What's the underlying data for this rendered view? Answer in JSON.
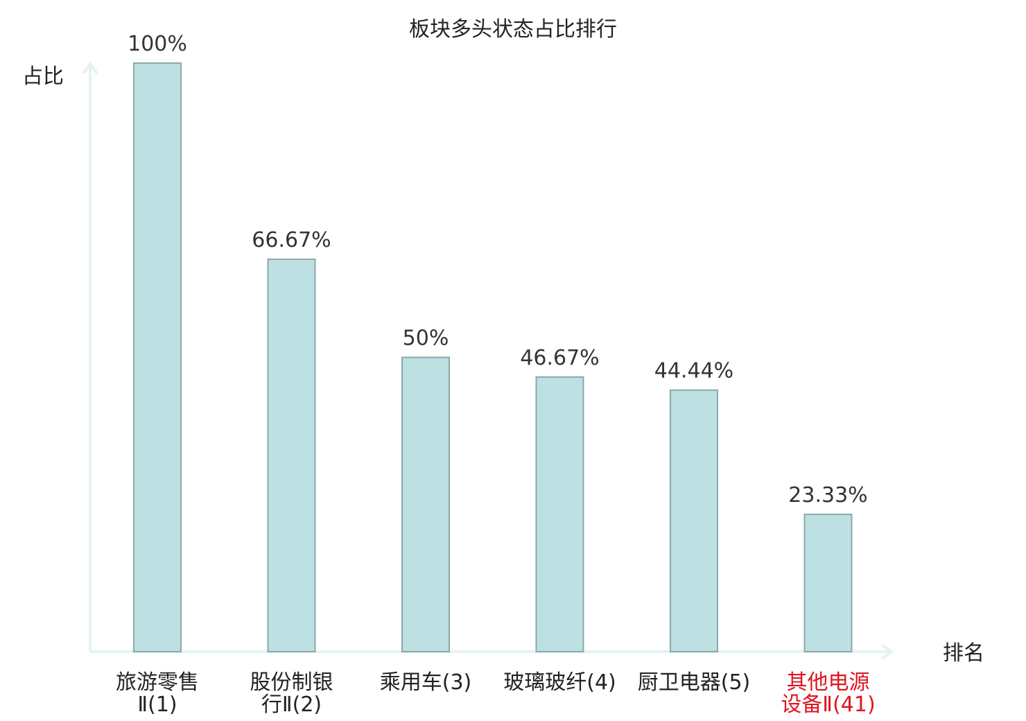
{
  "chart_data": {
    "type": "bar",
    "title": "板块多头状态占比排行",
    "ylabel": "占比",
    "xlabel": "排名",
    "ylim": [
      0,
      100
    ],
    "grid": false,
    "categories": [
      [
        "旅游零售",
        "Ⅱ(1)"
      ],
      [
        "股份制银",
        "行Ⅱ(2)"
      ],
      [
        "乘用车(3)"
      ],
      [
        "玻璃玻纤(4)"
      ],
      [
        "厨卫电器(5)"
      ],
      [
        "其他电源",
        "设备Ⅱ(41)"
      ]
    ],
    "values": [
      100,
      66.67,
      50,
      46.67,
      44.44,
      23.33
    ],
    "value_labels": [
      "100%",
      "66.67%",
      "50%",
      "46.67%",
      "44.44%",
      "23.33%"
    ],
    "highlight_index": 5,
    "colors": {
      "bar_fill": "#bde0e3",
      "bar_stroke": "#8aa8ab",
      "axis": "#e3f3f1",
      "highlight_text": "#e0141e"
    }
  }
}
